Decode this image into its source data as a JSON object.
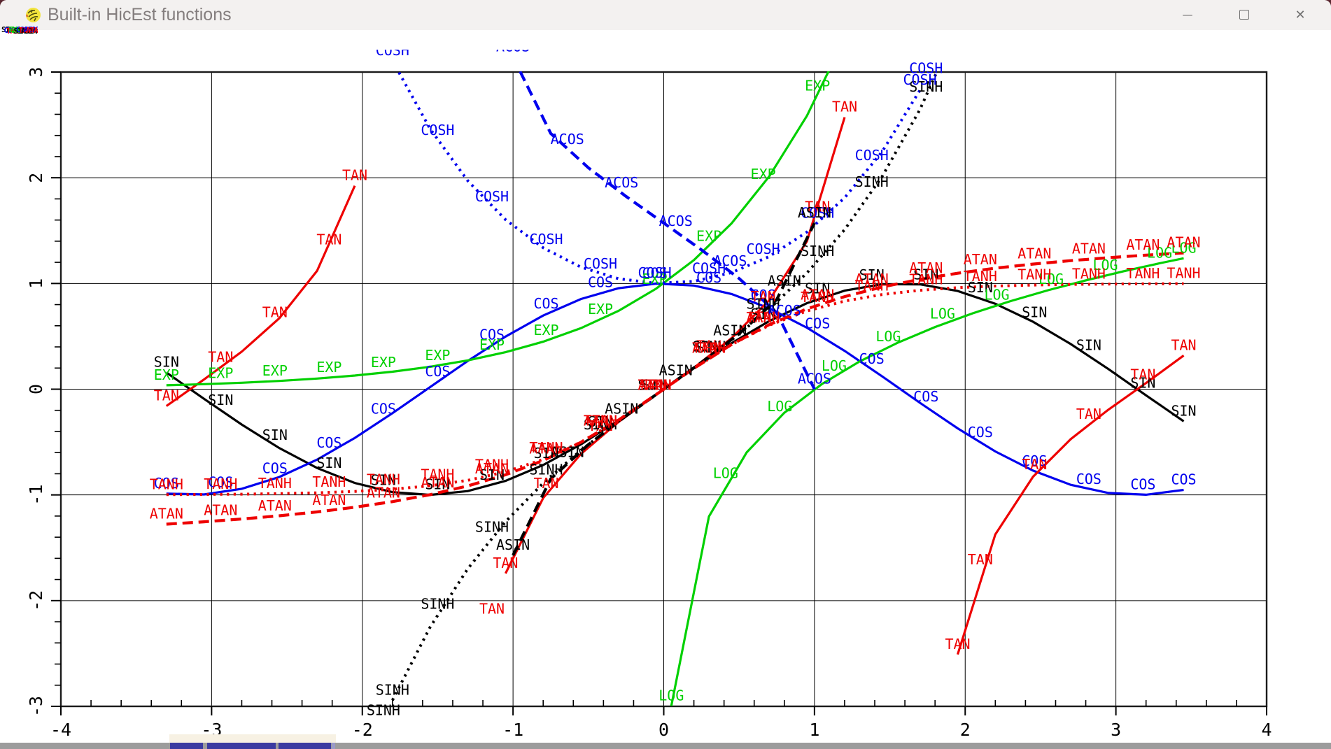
{
  "window": {
    "title": "Built-in HicEst functions",
    "controls": {
      "minimize": "—",
      "close": "✕"
    }
  },
  "taskbar": {
    "strip_color": "#9c9c9c",
    "button_color": "#3b3ba1",
    "accent_light": "#f7f1e3"
  },
  "chart_data": {
    "type": "line",
    "title": "Built-in HicEst functions",
    "xlabel": "",
    "ylabel": "",
    "xlim": [
      -4,
      4
    ],
    "ylim": [
      -3,
      3
    ],
    "x_ticks": [
      -4,
      -3,
      -2,
      -1,
      0,
      1,
      2,
      3,
      4
    ],
    "y_ticks": [
      -3,
      -2,
      -1,
      0,
      1,
      2,
      3
    ],
    "minor_tick_step": 0.2,
    "grid": true,
    "legend_position": "top-left-overlapped",
    "sample_step": 0.25,
    "label_step": 0.36,
    "label_y_limit": 3.25,
    "series": [
      {
        "name": "SIN",
        "fn": "sin",
        "color": "#000000",
        "style": "solid",
        "domain": [
          -3.3,
          3.45
        ]
      },
      {
        "name": "COS",
        "fn": "cos",
        "color": "#0000ee",
        "style": "solid",
        "domain": [
          -3.3,
          3.45
        ]
      },
      {
        "name": "TAN",
        "fn": "tan",
        "color": "#ee0000",
        "style": "solid",
        "domain": [
          -3.3,
          3.45
        ],
        "ybreak": 3.5
      },
      {
        "name": "EXP",
        "fn": "exp",
        "color": "#00d000",
        "style": "solid",
        "domain": [
          -3.3,
          3.45
        ],
        "ybreak": 3.5
      },
      {
        "name": "LOG",
        "fn": "log",
        "color": "#00d000",
        "style": "solid",
        "domain": [
          0.05,
          3.45
        ]
      },
      {
        "name": "SINH",
        "fn": "sinh",
        "color": "#000000",
        "style": "dotted",
        "domain": [
          -3.3,
          3.45
        ],
        "ybreak": 3.5
      },
      {
        "name": "COSH",
        "fn": "cosh",
        "color": "#0000ee",
        "style": "dotted",
        "domain": [
          -3.3,
          3.45
        ],
        "ybreak": 3.5
      },
      {
        "name": "TANH",
        "fn": "tanh",
        "color": "#ee0000",
        "style": "dotted",
        "domain": [
          -3.3,
          3.45
        ]
      },
      {
        "name": "ASIN",
        "fn": "asin",
        "color": "#000000",
        "style": "dashed",
        "domain": [
          -1,
          1
        ]
      },
      {
        "name": "ACOS",
        "fn": "acos",
        "color": "#0000ee",
        "style": "dashed",
        "domain": [
          -1,
          1
        ]
      },
      {
        "name": "ATAN",
        "fn": "atan",
        "color": "#ee0000",
        "style": "dashed",
        "domain": [
          -3.3,
          3.45
        ]
      }
    ]
  }
}
